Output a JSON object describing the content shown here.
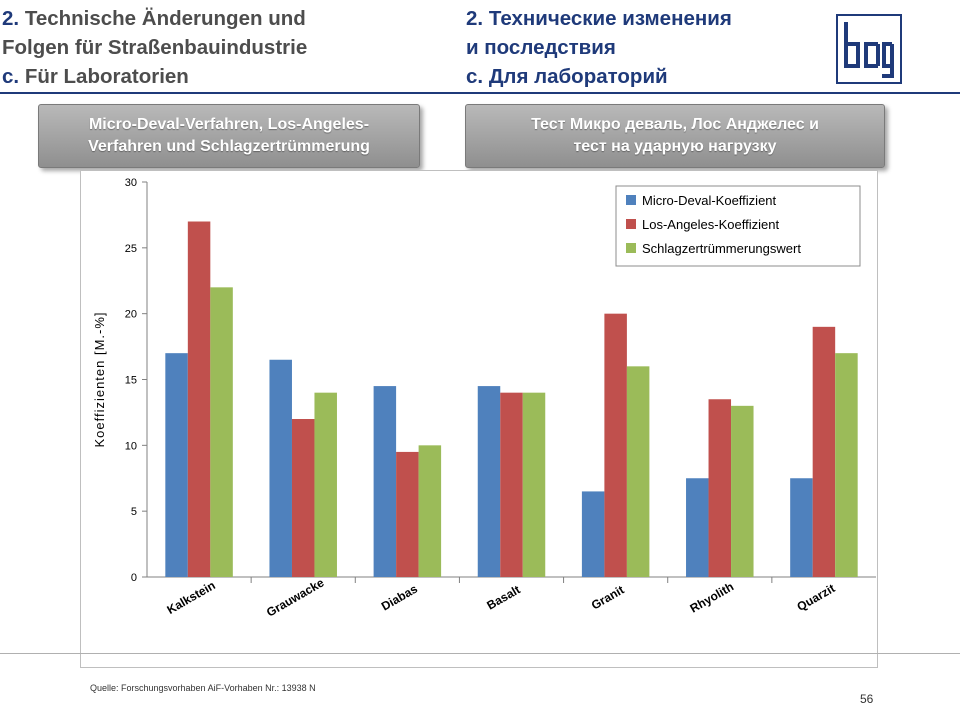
{
  "header": {
    "de": {
      "number": "2.",
      "line1": "Technische Änderungen und",
      "line2": "Folgen für Straßenbauindustrie",
      "sub_letter": "c.",
      "line3": "Für Laboratorien"
    },
    "ru": {
      "number": "2.",
      "line1": "Технические изменения",
      "line2": "и последствия",
      "sub_letter": "c.",
      "line3": "Для лабораторий"
    },
    "logo_icon": "bag-logo"
  },
  "pills": {
    "de": {
      "line1": "Micro-Deval-Verfahren, Los-Angeles-",
      "line2": "Verfahren und Schlagzertrümmerung"
    },
    "ru": {
      "line1": "Тест Микро деваль, Лос Анджелес и",
      "line2": "тест на ударную нагрузку"
    }
  },
  "chart_data": {
    "type": "bar",
    "categories": [
      "Kalkstein",
      "Grauwacke",
      "Diabas",
      "Basalt",
      "Granit",
      "Rhyolith",
      "Quarzit"
    ],
    "series": [
      {
        "name": "Micro-Deval-Koeffizient",
        "color": "#4f81bd",
        "values": [
          17,
          16.5,
          14.5,
          14.5,
          6.5,
          7.5,
          7.5
        ]
      },
      {
        "name": "Los-Angeles-Koeffizient",
        "color": "#c0504d",
        "values": [
          27,
          12,
          9.5,
          14,
          20,
          13.5,
          19
        ]
      },
      {
        "name": "Schlagzertrümmerungswert",
        "color": "#9bbb59",
        "values": [
          22,
          14,
          10,
          14,
          16,
          13,
          17
        ]
      }
    ],
    "ylabel": "Koeffizienten [M.-%]",
    "ylim": [
      0,
      30
    ],
    "yticks": [
      0,
      5,
      10,
      15,
      20,
      25,
      30
    ],
    "grid": false,
    "legend": "top-right"
  },
  "footer": {
    "source": "Quelle: Forschungsvorhaben AiF-Vorhaben Nr.: 13938 N",
    "page_number": "56"
  }
}
